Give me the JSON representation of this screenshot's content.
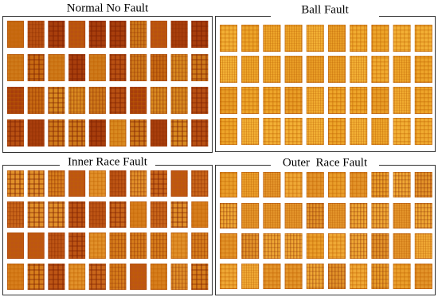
{
  "panels": [
    {
      "title": "Normal No Fault"
    },
    {
      "title": "Ball Fault"
    },
    {
      "title": "Inner Race Fault"
    },
    {
      "title": "Outer  Race Fault"
    }
  ]
}
